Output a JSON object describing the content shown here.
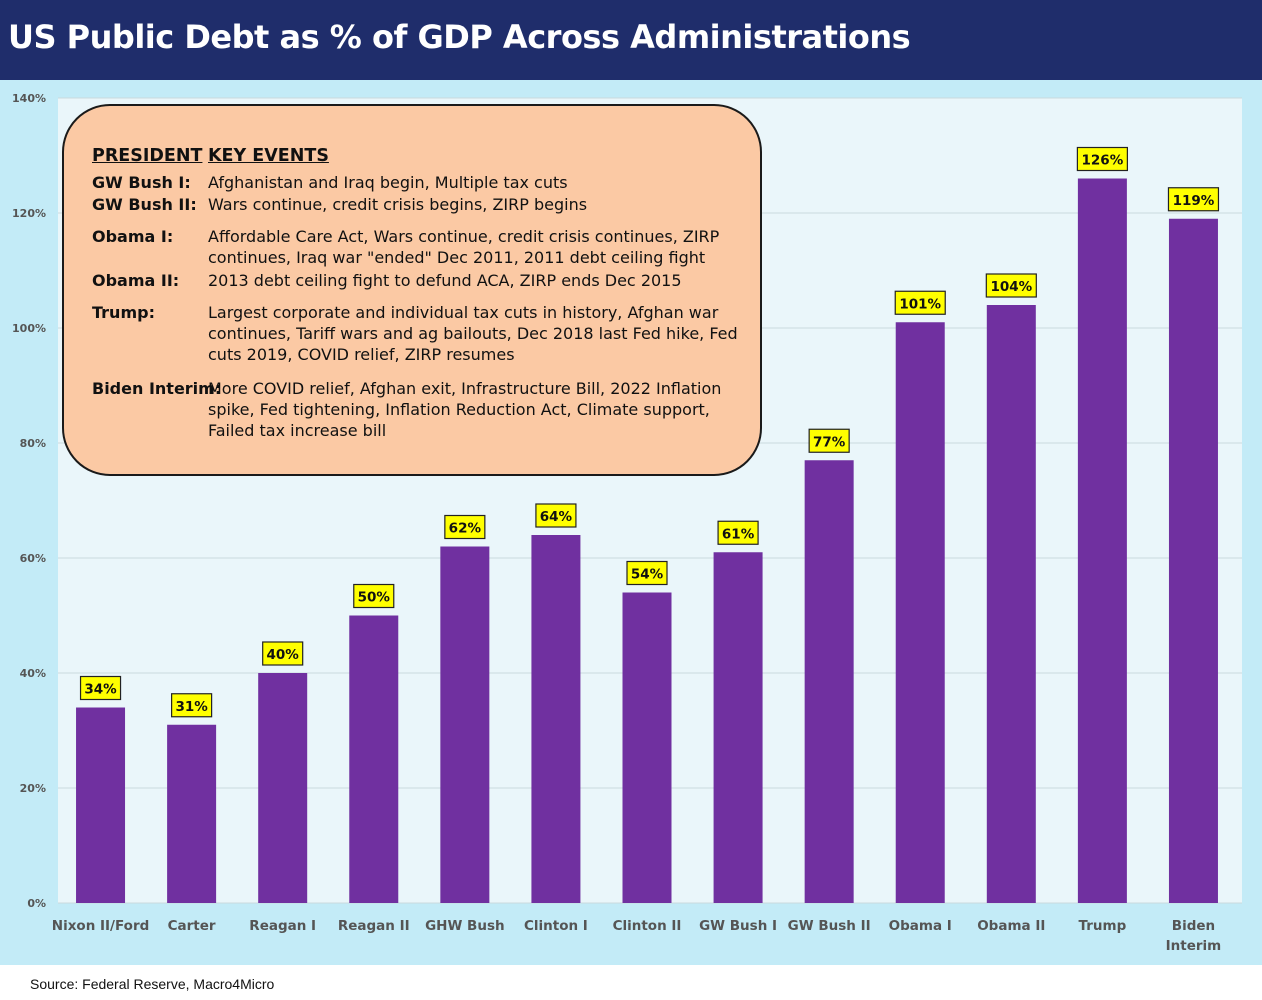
{
  "header": {
    "title": "US Public Debt as % of GDP Across Administrations"
  },
  "footer": {
    "source": "Source: Federal Reserve, Macro4Micro"
  },
  "colors": {
    "header_bg": "#1f2d6b",
    "plot_bg": "#c3ebf7",
    "plot_area": "#eaf6fa",
    "bar": "#7030a0",
    "label_bg": "#ffff00",
    "callout_bg": "#fbc9a4"
  },
  "chart_data": {
    "type": "bar",
    "title": "US Public Debt as % of GDP Across Administrations",
    "xlabel": "",
    "ylabel": "",
    "ylim": [
      0,
      140
    ],
    "ytick_step": 20,
    "y_unit": "%",
    "grid": true,
    "categories": [
      "Nixon II/Ford",
      "Carter",
      "Reagan I",
      "Reagan II",
      "GHW Bush",
      "Clinton I",
      "Clinton II",
      "GW Bush I",
      "GW Bush II",
      "Obama I",
      "Obama II",
      "Trump",
      "Biden Interim"
    ],
    "values": [
      34,
      31,
      40,
      50,
      62,
      64,
      54,
      61,
      77,
      101,
      104,
      126,
      119
    ],
    "data_labels": [
      "34%",
      "31%",
      "40%",
      "50%",
      "62%",
      "64%",
      "54%",
      "61%",
      "77%",
      "101%",
      "104%",
      "126%",
      "119%"
    ]
  },
  "callout": {
    "header_president": "PRESIDENT",
    "header_events": "KEY EVENTS",
    "rows": [
      {
        "president": "GW Bush I:",
        "lines": [
          "Afghanistan and Iraq begin, Multiple tax cuts"
        ]
      },
      {
        "president": "GW Bush II:",
        "lines": [
          "Wars continue, credit crisis begins, ZIRP begins"
        ]
      },
      {
        "president": "Obama I:",
        "lines": [
          "Affordable Care Act, Wars continue, credit crisis continues, ZIRP",
          "continues, Iraq war \"ended\" Dec 2011, 2011 debt ceiling fight"
        ]
      },
      {
        "president": "Obama II:",
        "lines": [
          "2013 debt ceiling fight to defund ACA, ZIRP ends Dec 2015"
        ]
      },
      {
        "president": "Trump:",
        "lines": [
          "Largest corporate and individual tax cuts in history, Afghan war",
          "continues, Tariff wars and ag bailouts, Dec 2018 last Fed hike, Fed",
          "cuts 2019, COVID relief, ZIRP resumes"
        ]
      },
      {
        "president": "Biden Interim:",
        "lines": [
          "More COVID relief, Afghan exit, Infrastructure Bill, 2022 Inflation",
          "spike, Fed tightening, Inflation Reduction Act, Climate support,",
          "Failed tax increase bill"
        ]
      }
    ]
  }
}
